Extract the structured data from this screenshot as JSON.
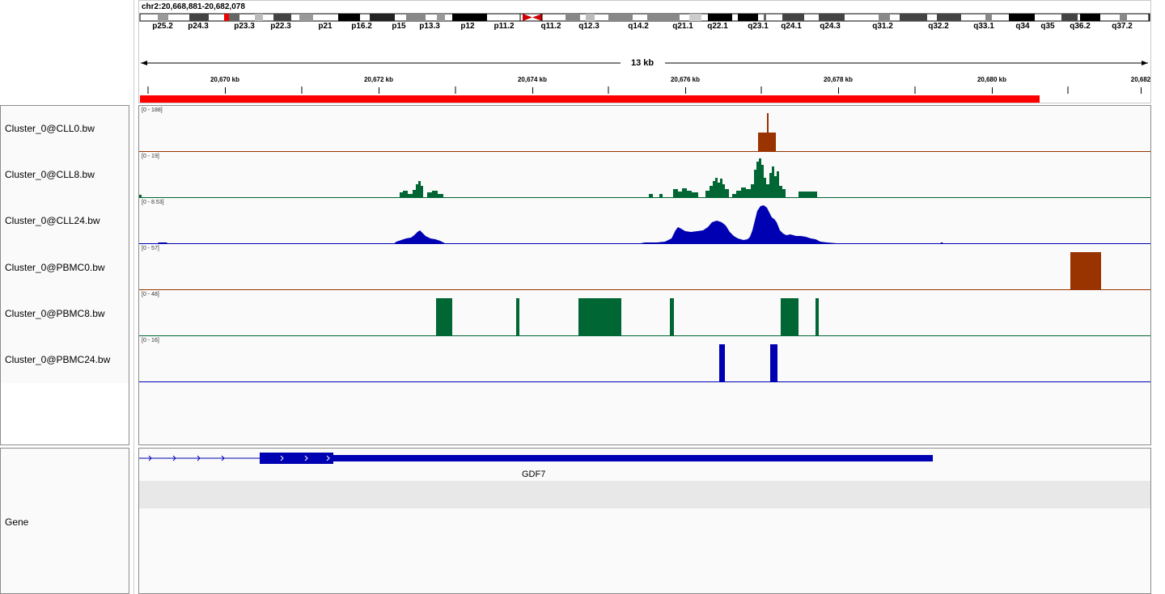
{
  "locus": "chr2:20,668,881-20,682,078",
  "span_label": "13 kb",
  "cytobands": [
    "p25.2",
    "p24.3",
    "p23.3",
    "p22.3",
    "p21",
    "p16.2",
    "p15",
    "p13.3",
    "p12",
    "p11.2",
    "q11.2",
    "q12.3",
    "q14.2",
    "q21.1",
    "q22.1",
    "q23.1",
    "q24.1",
    "q24.3",
    "q31.2",
    "q32.2",
    "q33.1",
    "q34",
    "q35",
    "q36.2",
    "q37.2"
  ],
  "ruler_ticks": [
    "20,670 kb",
    "20,672 kb",
    "20,674 kb",
    "20,676 kb",
    "20,678 kb",
    "20,680 kb",
    "20,682"
  ],
  "tracks": [
    {
      "name": "Cluster_0@CLL0.bw",
      "range": "[0 - 188]",
      "color": "#993300"
    },
    {
      "name": "Cluster_0@CLL8.bw",
      "range": "[0 - 19]",
      "color": "#006633"
    },
    {
      "name": "Cluster_0@CLL24.bw",
      "range": "[0 - 8.53]",
      "color": "#0000b3"
    },
    {
      "name": "Cluster_0@PBMC0.bw",
      "range": "[0 - 57]",
      "color": "#993300"
    },
    {
      "name": "Cluster_0@PBMC8.bw",
      "range": "[0 - 48]",
      "color": "#006633"
    },
    {
      "name": "Cluster_0@PBMC24.bw",
      "range": "[0 - 16]",
      "color": "#0000b3"
    }
  ],
  "gene_panel": {
    "label": "Gene",
    "gene_name": "GDF7",
    "color": "#0000b3"
  },
  "colors": {
    "region_bar": "#ff0000",
    "centromere": "#cc0000",
    "ideogram_outline": "#000000"
  }
}
